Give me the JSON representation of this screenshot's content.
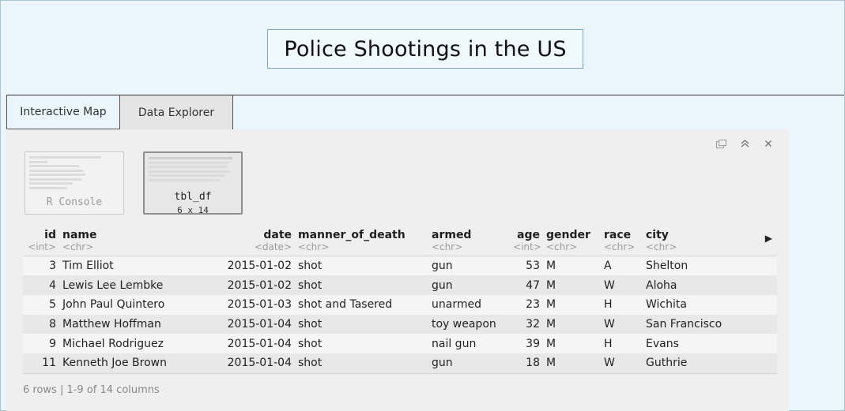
{
  "title": "Police Shootings in the US",
  "tabs": [
    {
      "label": "Interactive Map"
    },
    {
      "label": "Data Explorer"
    }
  ],
  "panel_icons": [
    "popout-icon",
    "collapse-icon",
    "close-icon"
  ],
  "thumbnails": {
    "console": {
      "label": "R Console"
    },
    "tibble": {
      "label": "tbl_df",
      "dims": "6 x 14"
    }
  },
  "table": {
    "columns": [
      {
        "name": "id",
        "type": "<int>"
      },
      {
        "name": "name",
        "type": "<chr>"
      },
      {
        "name": "date",
        "type": "<date>"
      },
      {
        "name": "manner_of_death",
        "type": "<chr>"
      },
      {
        "name": "armed",
        "type": "<chr>"
      },
      {
        "name": "age",
        "type": "<int>"
      },
      {
        "name": "gender",
        "type": "<chr>"
      },
      {
        "name": "race",
        "type": "<chr>"
      },
      {
        "name": "city",
        "type": "<chr>"
      }
    ],
    "rows": [
      [
        "3",
        "Tim Elliot",
        "2015-01-02",
        "shot",
        "gun",
        "53",
        "M",
        "A",
        "Shelton"
      ],
      [
        "4",
        "Lewis Lee Lembke",
        "2015-01-02",
        "shot",
        "gun",
        "47",
        "M",
        "W",
        "Aloha"
      ],
      [
        "5",
        "John Paul Quintero",
        "2015-01-03",
        "shot and Tasered",
        "unarmed",
        "23",
        "M",
        "H",
        "Wichita"
      ],
      [
        "8",
        "Matthew Hoffman",
        "2015-01-04",
        "shot",
        "toy weapon",
        "32",
        "M",
        "W",
        "San Francisco"
      ],
      [
        "9",
        "Michael Rodriguez",
        "2015-01-04",
        "shot",
        "nail gun",
        "39",
        "M",
        "H",
        "Evans"
      ],
      [
        "11",
        "Kenneth Joe Brown",
        "2015-01-04",
        "shot",
        "gun",
        "18",
        "M",
        "W",
        "Guthrie"
      ]
    ]
  },
  "footer": "6 rows | 1-9 of 14 columns"
}
